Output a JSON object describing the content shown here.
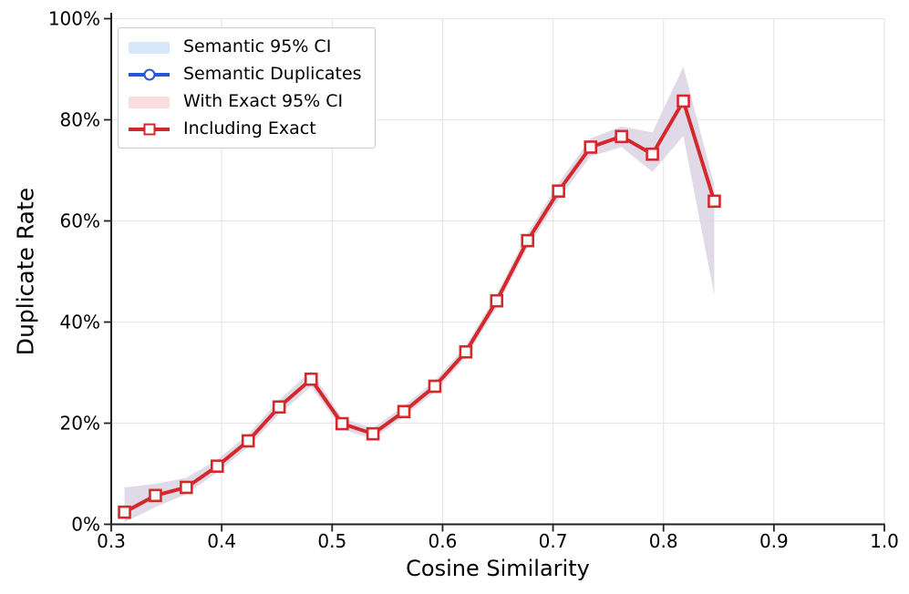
{
  "chart_data": {
    "type": "line",
    "title": "",
    "xlabel": "Cosine Similarity",
    "ylabel": "Duplicate Rate",
    "xlim": [
      0.3,
      1.0
    ],
    "ylim": [
      0,
      100
    ],
    "x_ticks": [
      0.3,
      0.4,
      0.5,
      0.6,
      0.7,
      0.8,
      0.9,
      1.0
    ],
    "y_ticks": [
      0,
      20,
      40,
      60,
      80,
      100
    ],
    "y_tick_format": "percent",
    "grid": true,
    "legend_position": "upper-left",
    "x": [
      0.312,
      0.34,
      0.368,
      0.396,
      0.424,
      0.452,
      0.481,
      0.509,
      0.537,
      0.565,
      0.593,
      0.621,
      0.649,
      0.677,
      0.705,
      0.734,
      0.762,
      0.79,
      0.818,
      0.846
    ],
    "series": [
      {
        "name": "Semantic Duplicates",
        "color": "#2657d9",
        "marker": "circle",
        "values": [
          2.4,
          5.7,
          7.3,
          11.5,
          16.5,
          23.2,
          28.7,
          19.9,
          17.9,
          22.3,
          27.3,
          34.1,
          44.2,
          56.1,
          65.9,
          74.6,
          76.7,
          73.2,
          83.7,
          63.9
        ]
      },
      {
        "name": "Including Exact",
        "color": "#d5282b",
        "marker": "square",
        "values": [
          2.4,
          5.7,
          7.3,
          11.5,
          16.5,
          23.2,
          28.7,
          19.9,
          17.9,
          22.3,
          27.3,
          34.1,
          44.2,
          56.1,
          65.9,
          74.6,
          76.7,
          73.2,
          83.7,
          63.9
        ]
      }
    ],
    "ci_band": {
      "name": "95% CI (semantic and with-exact bands overlap)",
      "fill": "#ddd5e5",
      "lower": [
        0.4,
        3.4,
        6.0,
        10.3,
        15.3,
        21.8,
        27.2,
        18.8,
        16.9,
        21.3,
        26.2,
        33.0,
        42.9,
        54.7,
        64.3,
        72.8,
        74.6,
        69.7,
        76.8,
        45.4
      ],
      "upper": [
        7.3,
        8.0,
        9.2,
        12.8,
        17.8,
        24.6,
        30.3,
        21.0,
        19.0,
        23.4,
        28.4,
        35.3,
        45.5,
        57.5,
        67.5,
        76.3,
        78.7,
        77.5,
        90.5,
        67.1
      ]
    },
    "legend": [
      {
        "label": "Semantic 95% CI",
        "swatch": "patch",
        "color": "#d7e6f8"
      },
      {
        "label": "Semantic Duplicates",
        "swatch": "line-circle",
        "color": "#2657d9"
      },
      {
        "label": "With Exact 95% CI",
        "swatch": "patch",
        "color": "#fadde0"
      },
      {
        "label": "Including Exact",
        "swatch": "line-square",
        "color": "#d5282b"
      }
    ],
    "style": {
      "grid_color": "#e7e7e7",
      "spine_color": "#222222",
      "tick_label_size": 20,
      "marker_face": "#ffffff"
    }
  }
}
